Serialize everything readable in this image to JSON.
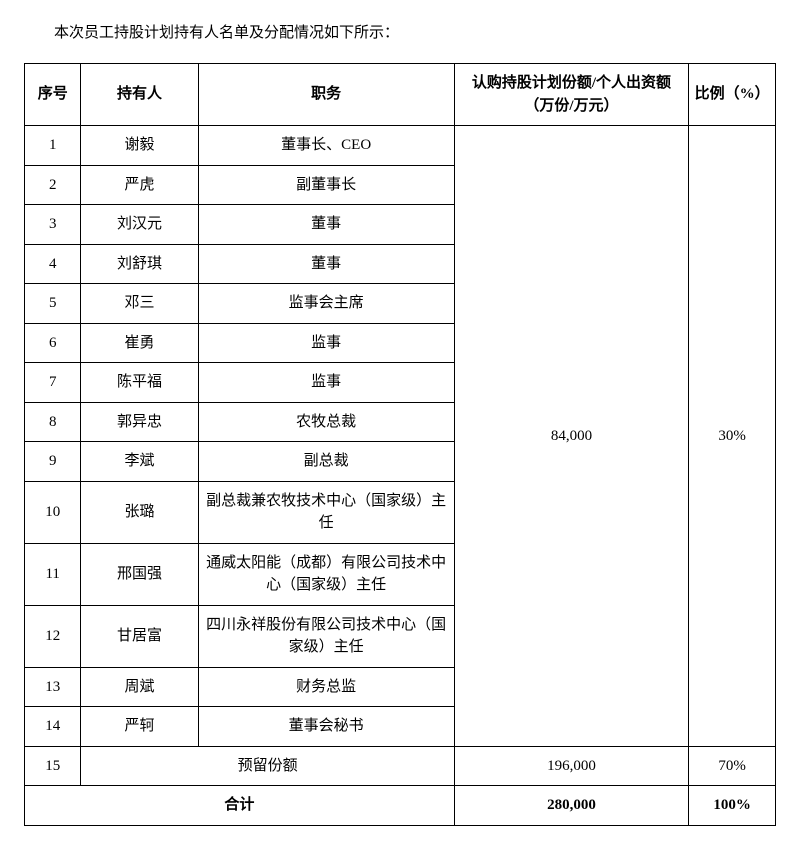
{
  "intro": "本次员工持股计划持有人名单及分配情况如下所示：",
  "headers": {
    "seq": "序号",
    "holder": "持有人",
    "title": "职务",
    "amount": "认购持股计划份额/个人出资额（万份/万元）",
    "ratio": "比例（%）"
  },
  "rows": [
    {
      "seq": "1",
      "holder": "谢毅",
      "title": "董事长、CEO"
    },
    {
      "seq": "2",
      "holder": "严虎",
      "title": "副董事长"
    },
    {
      "seq": "3",
      "holder": "刘汉元",
      "title": "董事"
    },
    {
      "seq": "4",
      "holder": "刘舒琪",
      "title": "董事"
    },
    {
      "seq": "5",
      "holder": "邓三",
      "title": "监事会主席"
    },
    {
      "seq": "6",
      "holder": "崔勇",
      "title": "监事"
    },
    {
      "seq": "7",
      "holder": "陈平福",
      "title": "监事"
    },
    {
      "seq": "8",
      "holder": "郭异忠",
      "title": "农牧总裁"
    },
    {
      "seq": "9",
      "holder": "李斌",
      "title": "副总裁"
    },
    {
      "seq": "10",
      "holder": "张璐",
      "title": "副总裁兼农牧技术中心（国家级）主任"
    },
    {
      "seq": "11",
      "holder": "邢国强",
      "title": "通威太阳能（成都）有限公司技术中心（国家级）主任"
    },
    {
      "seq": "12",
      "holder": "甘居富",
      "title": "四川永祥股份有限公司技术中心（国家级）主任"
    },
    {
      "seq": "13",
      "holder": "周斌",
      "title": "财务总监"
    },
    {
      "seq": "14",
      "holder": "严轲",
      "title": "董事会秘书"
    }
  ],
  "group_amount": "84,000",
  "group_ratio": "30%",
  "reserved": {
    "seq": "15",
    "label": "预留份额",
    "amount": "196,000",
    "ratio": "70%"
  },
  "total": {
    "label": "合计",
    "amount": "280,000",
    "ratio": "100%"
  }
}
